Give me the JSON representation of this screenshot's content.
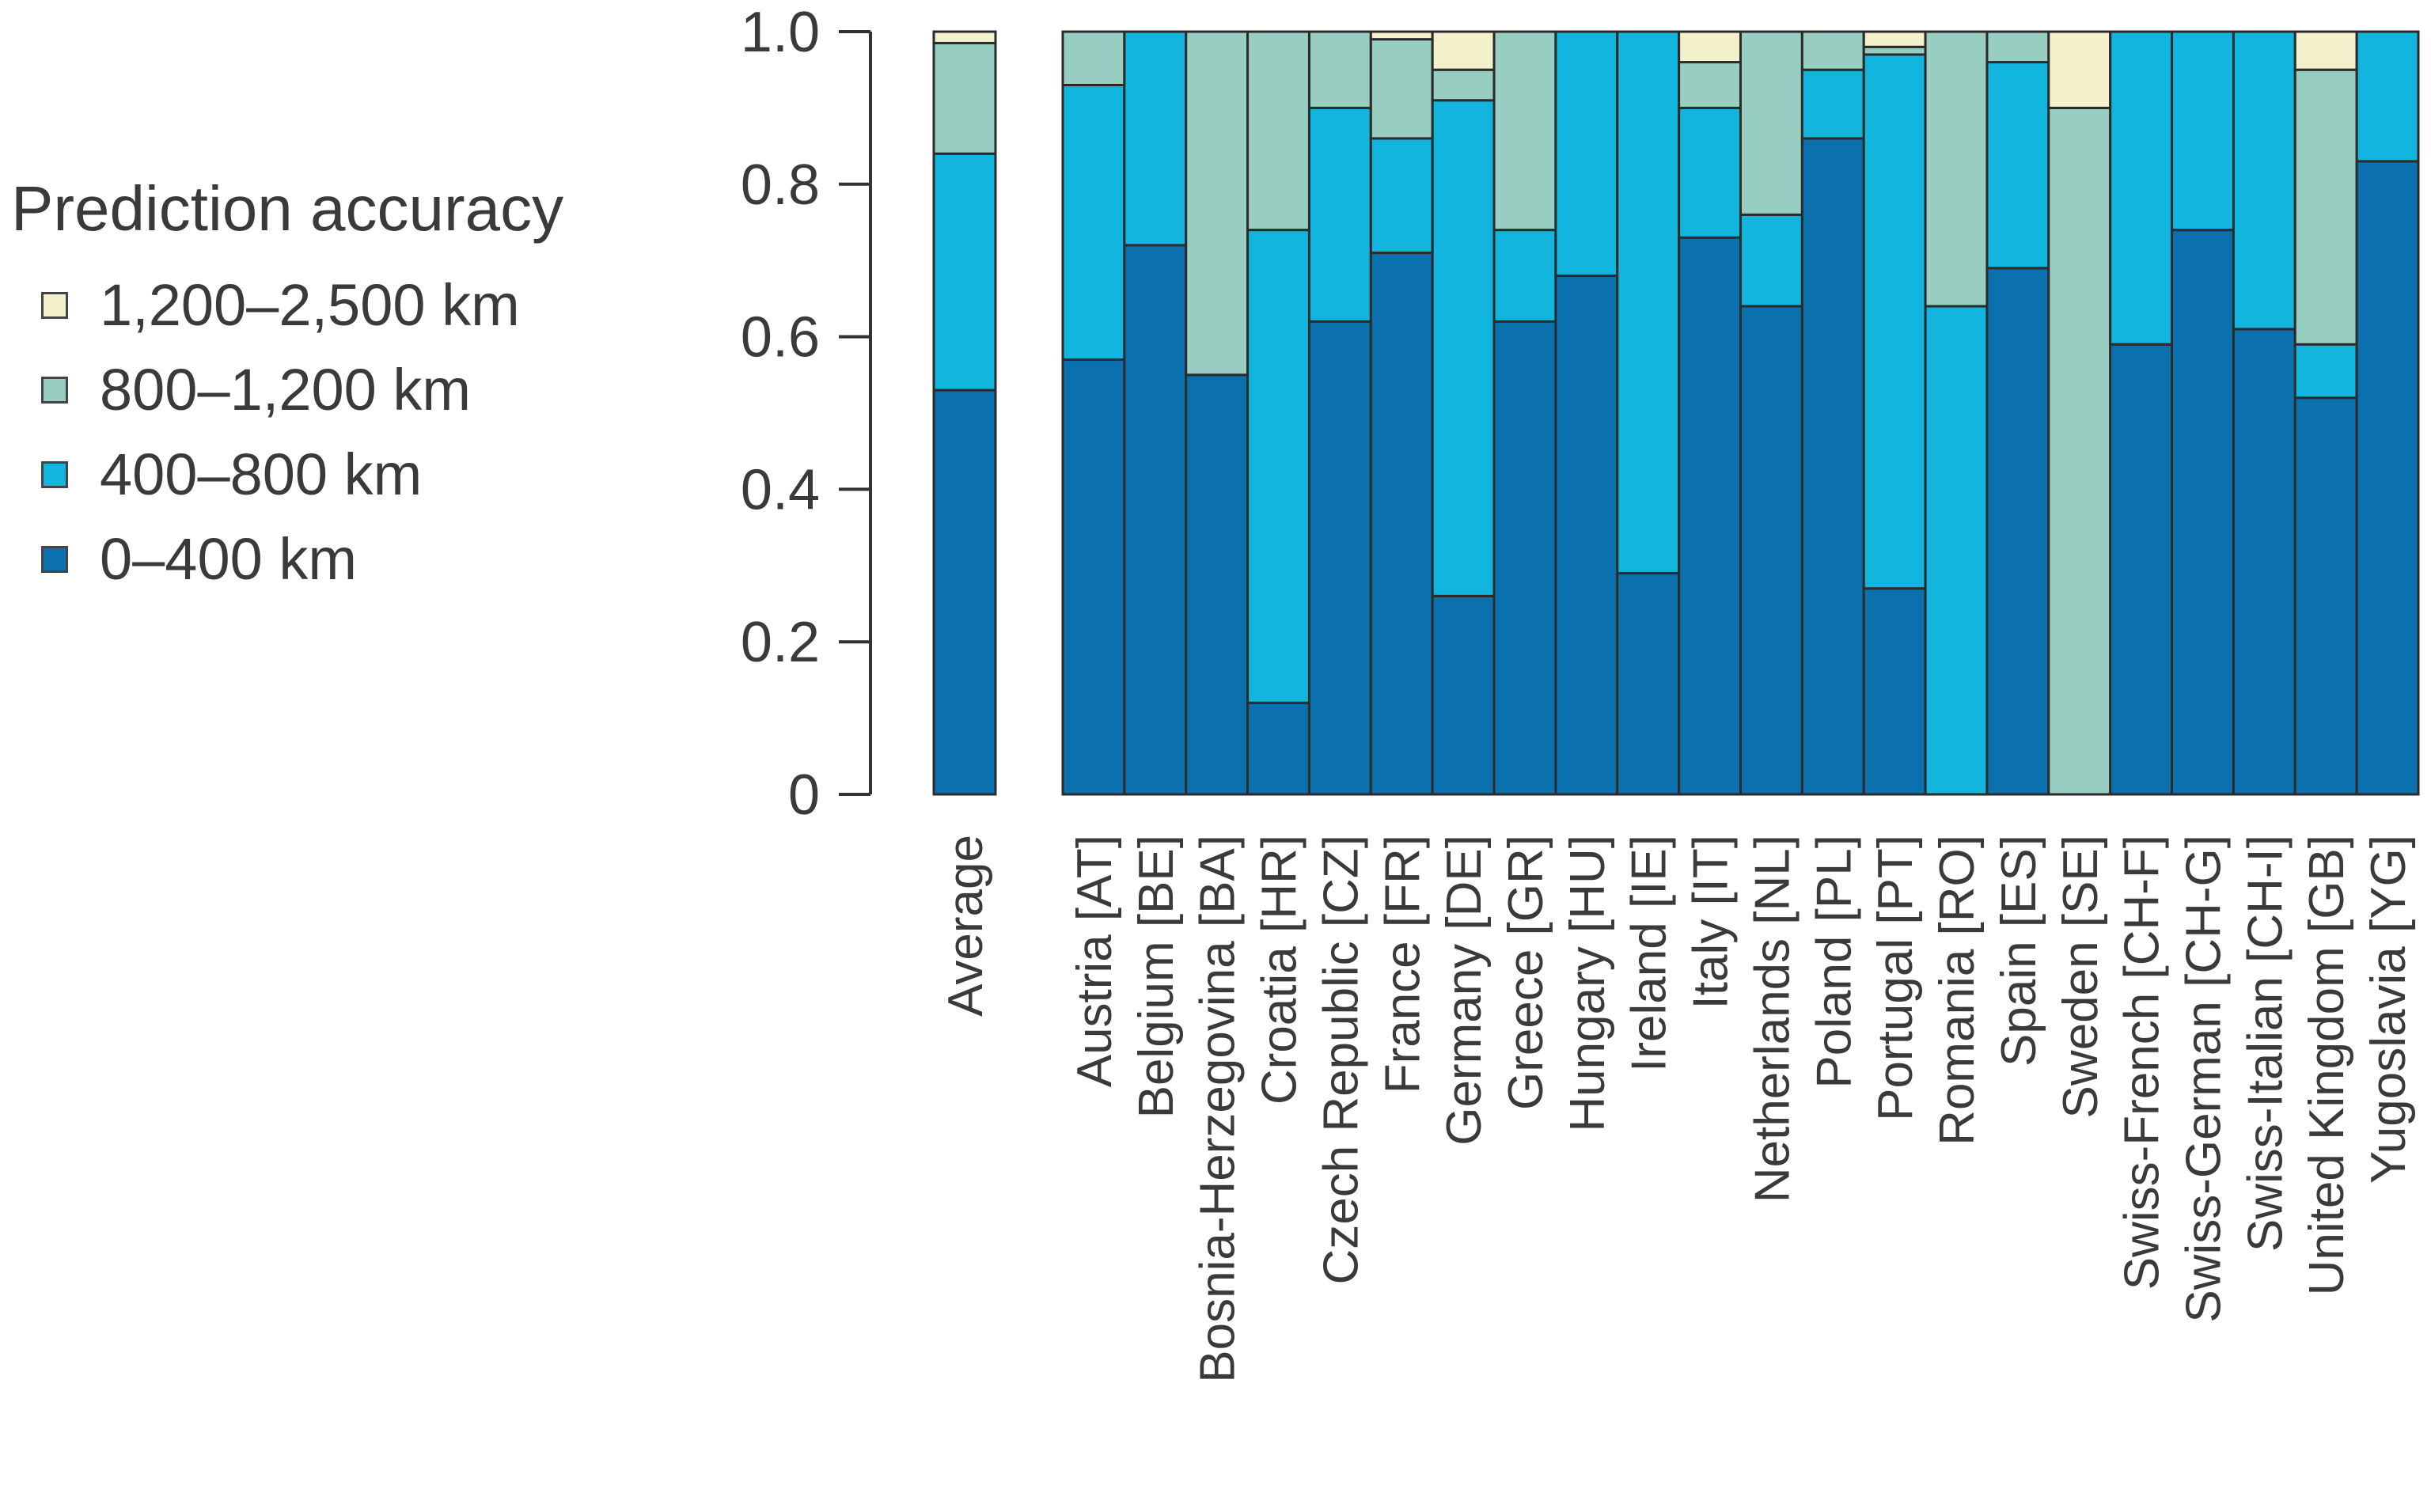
{
  "chart_data": {
    "type": "bar",
    "stacked": true,
    "legend_title": "Prediction accuracy",
    "legend_position": "left",
    "ylim": [
      0,
      1.0
    ],
    "yticks": [
      "0",
      "0.2",
      "0.4",
      "0.6",
      "0.8",
      "1.0"
    ],
    "ytick_values": [
      0,
      0.2,
      0.4,
      0.6,
      0.8,
      1.0
    ],
    "series": [
      {
        "name": "0–400 km",
        "color": "#0a71ae"
      },
      {
        "name": "400–800 km",
        "color": "#12b5dd"
      },
      {
        "name": "800–1,200 km",
        "color": "#98cec2"
      },
      {
        "name": "1,200–2,500 km",
        "color": "#f3f0cc"
      }
    ],
    "legend_order": [
      "1,200–2,500 km",
      "800–1,200 km",
      "400–800 km",
      "0–400 km"
    ],
    "average": {
      "label": "Average",
      "cumulative": [
        0.53,
        0.84,
        0.985,
        1.0
      ]
    },
    "categories": [
      {
        "label": "Austria [AT]",
        "cumulative": [
          0.57,
          0.93,
          1.0,
          1.0
        ]
      },
      {
        "label": "Belgium [BE]",
        "cumulative": [
          0.72,
          1.0,
          1.0,
          1.0
        ]
      },
      {
        "label": "Bosnia-Herzegovina [BA]",
        "cumulative": [
          0.55,
          0.55,
          1.0,
          1.0
        ]
      },
      {
        "label": "Croatia [HR]",
        "cumulative": [
          0.12,
          0.74,
          1.0,
          1.0
        ]
      },
      {
        "label": "Czech Republic [CZ]",
        "cumulative": [
          0.62,
          0.9,
          1.0,
          1.0
        ]
      },
      {
        "label": "France [FR]",
        "cumulative": [
          0.71,
          0.86,
          0.99,
          1.0
        ]
      },
      {
        "label": "Germany [DE]",
        "cumulative": [
          0.26,
          0.91,
          0.95,
          1.0
        ]
      },
      {
        "label": "Greece [GR]",
        "cumulative": [
          0.62,
          0.74,
          1.0,
          1.0
        ]
      },
      {
        "label": "Hungary [HU]",
        "cumulative": [
          0.68,
          1.0,
          1.0,
          1.0
        ]
      },
      {
        "label": "Ireland [IE]",
        "cumulative": [
          0.29,
          1.0,
          1.0,
          1.0
        ]
      },
      {
        "label": "Italy [IT]",
        "cumulative": [
          0.73,
          0.9,
          0.96,
          1.0
        ]
      },
      {
        "label": "Netherlands [NL]",
        "cumulative": [
          0.64,
          0.76,
          1.0,
          1.0
        ]
      },
      {
        "label": "Poland [PL]",
        "cumulative": [
          0.86,
          0.95,
          1.0,
          1.0
        ]
      },
      {
        "label": "Portugal [PT]",
        "cumulative": [
          0.27,
          0.97,
          0.98,
          1.0
        ]
      },
      {
        "label": "Romania [RO]",
        "cumulative": [
          0.0,
          0.64,
          1.0,
          1.0
        ]
      },
      {
        "label": "Spain [ES]",
        "cumulative": [
          0.69,
          0.96,
          1.0,
          1.0
        ]
      },
      {
        "label": "Sweden [SE]",
        "cumulative": [
          0.0,
          0.0,
          0.9,
          1.0
        ]
      },
      {
        "label": "Swiss-French [CH-F]",
        "cumulative": [
          0.59,
          1.0,
          1.0,
          1.0
        ]
      },
      {
        "label": "Swiss-German [CH-G]",
        "cumulative": [
          0.74,
          1.0,
          1.0,
          1.0
        ]
      },
      {
        "label": "Swiss-Italian [CH-I]",
        "cumulative": [
          0.61,
          1.0,
          1.0,
          1.0
        ]
      },
      {
        "label": "United Kingdom [GB]",
        "cumulative": [
          0.52,
          0.59,
          0.95,
          1.0
        ]
      },
      {
        "label": "Yugoslavia [YG]",
        "cumulative": [
          0.83,
          1.0,
          1.0,
          1.0
        ]
      }
    ]
  }
}
